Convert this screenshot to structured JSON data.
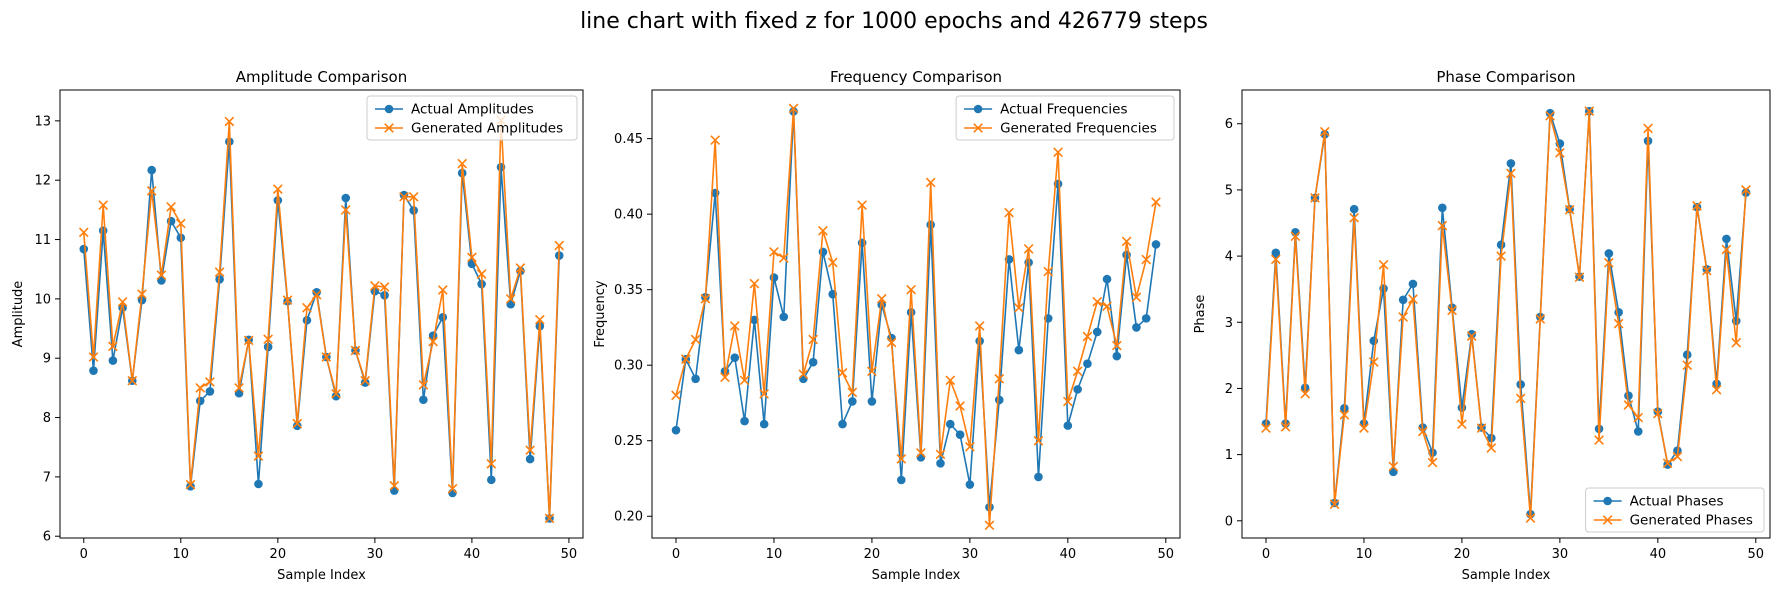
{
  "figure": {
    "title": "line chart with fixed z for 1000 epochs and 426779 steps"
  },
  "colors": {
    "actual": "#1f77b4",
    "generated": "#ff7f0e"
  },
  "chart_data": [
    {
      "type": "line",
      "title": "Amplitude Comparison",
      "xlabel": "Sample Index",
      "ylabel": "Amplitude",
      "xlim": [
        -2.45,
        51.45
      ],
      "ylim": [
        5.97,
        13.52
      ],
      "xticks": [
        0,
        10,
        20,
        30,
        40,
        50
      ],
      "yticks": [
        6,
        7,
        8,
        9,
        10,
        11,
        12,
        13
      ],
      "legend": "top-right",
      "x": [
        0,
        1,
        2,
        3,
        4,
        5,
        6,
        7,
        8,
        9,
        10,
        11,
        12,
        13,
        14,
        15,
        16,
        17,
        18,
        19,
        20,
        21,
        22,
        23,
        24,
        25,
        26,
        27,
        28,
        29,
        30,
        31,
        32,
        33,
        34,
        35,
        36,
        37,
        38,
        39,
        40,
        41,
        42,
        43,
        44,
        45,
        46,
        47,
        48,
        49
      ],
      "series": [
        {
          "name": "Actual Amplitudes",
          "marker": "circle",
          "values": [
            10.84,
            8.79,
            11.15,
            8.96,
            9.85,
            8.62,
            9.98,
            12.17,
            10.31,
            11.31,
            11.03,
            6.84,
            8.28,
            8.44,
            10.33,
            12.65,
            8.41,
            9.31,
            6.88,
            9.19,
            11.66,
            9.96,
            7.86,
            9.64,
            10.11,
            9.02,
            8.36,
            11.7,
            9.13,
            8.59,
            10.13,
            10.06,
            6.77,
            11.75,
            11.49,
            8.3,
            9.38,
            9.69,
            6.73,
            12.12,
            10.59,
            10.25,
            6.95,
            12.22,
            9.91,
            10.47,
            7.3,
            9.54,
            6.3,
            10.73
          ]
        },
        {
          "name": "Generated Amplitudes",
          "marker": "x",
          "values": [
            11.12,
            9.02,
            11.58,
            9.2,
            9.95,
            8.62,
            10.08,
            11.82,
            10.4,
            11.55,
            11.27,
            6.87,
            8.5,
            8.6,
            10.45,
            12.99,
            8.5,
            9.3,
            7.35,
            9.32,
            11.85,
            9.98,
            7.9,
            9.85,
            10.07,
            9.02,
            8.4,
            11.5,
            9.13,
            8.62,
            10.22,
            10.2,
            6.85,
            11.72,
            11.72,
            8.55,
            9.28,
            10.15,
            6.8,
            12.28,
            10.7,
            10.42,
            7.22,
            13.01,
            10.0,
            10.52,
            7.45,
            9.65,
            6.3,
            10.9
          ]
        }
      ]
    },
    {
      "type": "line",
      "title": "Frequency Comparison",
      "xlabel": "Sample Index",
      "ylabel": "Frequency",
      "xlim": [
        -2.45,
        51.45
      ],
      "ylim": [
        0.1856,
        0.4822
      ],
      "xticks": [
        0,
        10,
        20,
        30,
        40,
        50
      ],
      "yticks": [
        0.2,
        0.25,
        0.3,
        0.35,
        0.4,
        0.45
      ],
      "ytick_labels": [
        "0.20",
        "0.25",
        "0.30",
        "0.35",
        "0.40",
        "0.45"
      ],
      "legend": "top-right",
      "x": [
        0,
        1,
        2,
        3,
        4,
        5,
        6,
        7,
        8,
        9,
        10,
        11,
        12,
        13,
        14,
        15,
        16,
        17,
        18,
        19,
        20,
        21,
        22,
        23,
        24,
        25,
        26,
        27,
        28,
        29,
        30,
        31,
        32,
        33,
        34,
        35,
        36,
        37,
        38,
        39,
        40,
        41,
        42,
        43,
        44,
        45,
        46,
        47,
        48,
        49
      ],
      "series": [
        {
          "name": "Actual Frequencies",
          "marker": "circle",
          "values": [
            0.257,
            0.304,
            0.291,
            0.345,
            0.414,
            0.296,
            0.305,
            0.263,
            0.33,
            0.261,
            0.358,
            0.332,
            0.468,
            0.291,
            0.302,
            0.375,
            0.347,
            0.261,
            0.276,
            0.381,
            0.276,
            0.34,
            0.318,
            0.224,
            0.335,
            0.239,
            0.393,
            0.235,
            0.261,
            0.254,
            0.221,
            0.316,
            0.206,
            0.277,
            0.37,
            0.31,
            0.368,
            0.226,
            0.331,
            0.42,
            0.26,
            0.284,
            0.301,
            0.322,
            0.357,
            0.306,
            0.373,
            0.325,
            0.331,
            0.38
          ]
        },
        {
          "name": "Generated Frequencies",
          "marker": "x",
          "values": [
            0.28,
            0.304,
            0.317,
            0.344,
            0.449,
            0.292,
            0.326,
            0.29,
            0.354,
            0.281,
            0.375,
            0.371,
            0.47,
            0.294,
            0.317,
            0.389,
            0.368,
            0.295,
            0.282,
            0.406,
            0.296,
            0.344,
            0.315,
            0.238,
            0.35,
            0.242,
            0.421,
            0.241,
            0.29,
            0.273,
            0.246,
            0.326,
            0.194,
            0.291,
            0.401,
            0.338,
            0.377,
            0.25,
            0.362,
            0.441,
            0.276,
            0.296,
            0.319,
            0.342,
            0.339,
            0.313,
            0.382,
            0.345,
            0.37,
            0.408
          ]
        }
      ]
    },
    {
      "type": "line",
      "title": "Phase Comparison",
      "xlabel": "Sample Index",
      "ylabel": "Phase",
      "xlim": [
        -2.45,
        51.45
      ],
      "ylim": [
        -0.26,
        6.51
      ],
      "xticks": [
        0,
        10,
        20,
        30,
        40,
        50
      ],
      "yticks": [
        0,
        1,
        2,
        3,
        4,
        5,
        6
      ],
      "legend": "bottom-right",
      "x": [
        0,
        1,
        2,
        3,
        4,
        5,
        6,
        7,
        8,
        9,
        10,
        11,
        12,
        13,
        14,
        15,
        16,
        17,
        18,
        19,
        20,
        21,
        22,
        23,
        24,
        25,
        26,
        27,
        28,
        29,
        30,
        31,
        32,
        33,
        34,
        35,
        36,
        37,
        38,
        39,
        40,
        41,
        42,
        43,
        44,
        45,
        46,
        47,
        48,
        49
      ],
      "series": [
        {
          "name": "Actual Phases",
          "marker": "circle",
          "values": [
            1.47,
            4.05,
            1.47,
            4.36,
            2.01,
            4.88,
            5.84,
            0.27,
            1.7,
            4.71,
            1.47,
            2.72,
            3.51,
            0.74,
            3.34,
            3.58,
            1.41,
            1.03,
            4.73,
            3.22,
            1.71,
            2.82,
            1.41,
            1.25,
            4.17,
            5.4,
            2.06,
            0.1,
            3.08,
            6.16,
            5.7,
            4.71,
            3.69,
            6.19,
            1.39,
            4.04,
            3.15,
            1.89,
            1.35,
            5.74,
            1.65,
            0.85,
            1.06,
            2.51,
            4.74,
            3.8,
            2.07,
            4.26,
            3.02,
            4.96
          ]
        },
        {
          "name": "Generated Phases",
          "marker": "x",
          "values": [
            1.4,
            3.95,
            1.42,
            4.3,
            1.92,
            4.88,
            5.88,
            0.25,
            1.6,
            4.58,
            1.4,
            2.4,
            3.87,
            0.82,
            3.08,
            3.35,
            1.35,
            0.88,
            4.46,
            3.18,
            1.46,
            2.79,
            1.4,
            1.1,
            4.0,
            5.25,
            1.85,
            0.04,
            3.05,
            6.12,
            5.56,
            4.7,
            3.68,
            6.19,
            1.22,
            3.9,
            2.98,
            1.75,
            1.56,
            5.93,
            1.62,
            0.87,
            0.97,
            2.35,
            4.76,
            3.78,
            1.98,
            4.1,
            2.69,
            5.0
          ]
        }
      ]
    }
  ]
}
